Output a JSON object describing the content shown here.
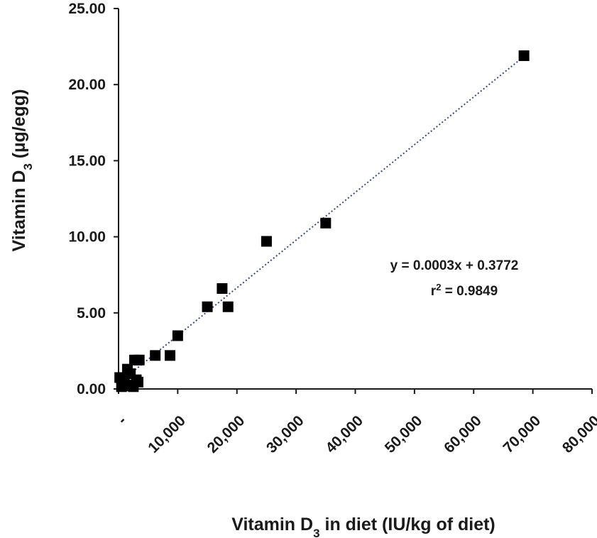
{
  "chart_data": {
    "type": "scatter",
    "title": "",
    "xlabel": {
      "main": "Vitamin D",
      "sub": "3",
      "tail": " in diet (IU/kg of diet)"
    },
    "ylabel": {
      "main": "Vitamin  D",
      "sub": "3",
      "tail": " (µg/egg)"
    },
    "xlim": [
      0,
      80000
    ],
    "ylim": [
      0,
      25
    ],
    "x_ticks": [
      {
        "value": 0,
        "label": "-"
      },
      {
        "value": 10000,
        "label": "10,000"
      },
      {
        "value": 20000,
        "label": "20,000"
      },
      {
        "value": 30000,
        "label": "30,000"
      },
      {
        "value": 40000,
        "label": "40,000"
      },
      {
        "value": 50000,
        "label": "50,000"
      },
      {
        "value": 60000,
        "label": "60,000"
      },
      {
        "value": 70000,
        "label": "70,000"
      },
      {
        "value": 80000,
        "label": "80,000"
      }
    ],
    "y_ticks": [
      {
        "value": 0,
        "label": "0.00"
      },
      {
        "value": 5,
        "label": "5.00"
      },
      {
        "value": 10,
        "label": "10.00"
      },
      {
        "value": 15,
        "label": "15.00"
      },
      {
        "value": 20,
        "label": "20.00"
      },
      {
        "value": 25,
        "label": "25.00"
      }
    ],
    "grid": false,
    "marker": "square",
    "marker_color": "#000000",
    "series": [
      {
        "points": [
          {
            "x": 200,
            "y": 0.75
          },
          {
            "x": 500,
            "y": 0.15
          },
          {
            "x": 800,
            "y": 0.55
          },
          {
            "x": 1000,
            "y": 0.3
          },
          {
            "x": 1200,
            "y": 0.2
          },
          {
            "x": 1500,
            "y": 1.3
          },
          {
            "x": 1800,
            "y": 0.25
          },
          {
            "x": 2000,
            "y": 1.0
          },
          {
            "x": 2500,
            "y": 0.15
          },
          {
            "x": 2700,
            "y": 1.9
          },
          {
            "x": 3000,
            "y": 0.6
          },
          {
            "x": 3300,
            "y": 0.45
          },
          {
            "x": 3500,
            "y": 1.9
          },
          {
            "x": 6200,
            "y": 2.2
          },
          {
            "x": 8700,
            "y": 2.2
          },
          {
            "x": 10000,
            "y": 3.5
          },
          {
            "x": 15000,
            "y": 5.4
          },
          {
            "x": 17500,
            "y": 6.6
          },
          {
            "x": 18500,
            "y": 5.4
          },
          {
            "x": 25000,
            "y": 9.7
          },
          {
            "x": 35000,
            "y": 10.9
          },
          {
            "x": 68500,
            "y": 21.9
          }
        ]
      }
    ],
    "trendline": {
      "style": "dotted",
      "color": "#3c4a6b",
      "slope": 0.0003135,
      "intercept": 0.3772,
      "x_range": [
        0,
        68500
      ]
    },
    "annotations": {
      "equation": "y = 0.0003x  + 0.3772",
      "r2_label": "r",
      "r2_sup": "2",
      "r2_value": " = 0.9849"
    }
  }
}
